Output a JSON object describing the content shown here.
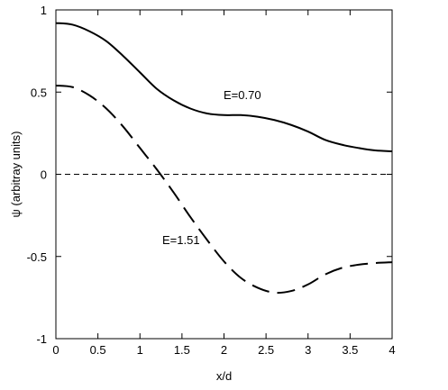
{
  "chart_data": {
    "type": "line",
    "xlabel": "x/d",
    "ylabel": "ψ  (arbitray units)",
    "xlim": [
      0,
      4
    ],
    "ylim": [
      -1,
      1
    ],
    "xticks": [
      0,
      0.5,
      1,
      1.5,
      2,
      2.5,
      3,
      3.5,
      4
    ],
    "yticks": [
      -1,
      -0.5,
      0,
      0.5,
      1
    ],
    "xtick_labels": [
      "0",
      "0.5",
      "1",
      "1.5",
      "2",
      "2.5",
      "3",
      "3.5",
      "4"
    ],
    "ytick_labels": [
      "-1",
      "-0.5",
      "0",
      "0.5",
      "1"
    ],
    "grid": false,
    "reference_line": {
      "y": 0,
      "style": "dashed"
    },
    "series": [
      {
        "annotation": "E=0.70",
        "style": "solid",
        "x": [
          0,
          0.2,
          0.4,
          0.6,
          0.8,
          1.0,
          1.2,
          1.4,
          1.6,
          1.8,
          2.0,
          2.2,
          2.4,
          2.6,
          2.8,
          3.0,
          3.2,
          3.4,
          3.6,
          3.8,
          4.0
        ],
        "y": [
          0.92,
          0.91,
          0.87,
          0.81,
          0.72,
          0.62,
          0.52,
          0.45,
          0.4,
          0.37,
          0.36,
          0.36,
          0.35,
          0.33,
          0.3,
          0.26,
          0.21,
          0.18,
          0.16,
          0.145,
          0.14
        ]
      },
      {
        "annotation": "E=1.51",
        "style": "dashed",
        "x": [
          0,
          0.2,
          0.4,
          0.6,
          0.8,
          1.0,
          1.2,
          1.4,
          1.6,
          1.8,
          2.0,
          2.2,
          2.4,
          2.6,
          2.8,
          3.0,
          3.2,
          3.4,
          3.6,
          3.8,
          4.0
        ],
        "y": [
          0.54,
          0.53,
          0.48,
          0.4,
          0.29,
          0.16,
          0.03,
          -0.11,
          -0.26,
          -0.4,
          -0.53,
          -0.63,
          -0.69,
          -0.72,
          -0.71,
          -0.67,
          -0.61,
          -0.57,
          -0.55,
          -0.54,
          -0.535
        ]
      }
    ]
  }
}
